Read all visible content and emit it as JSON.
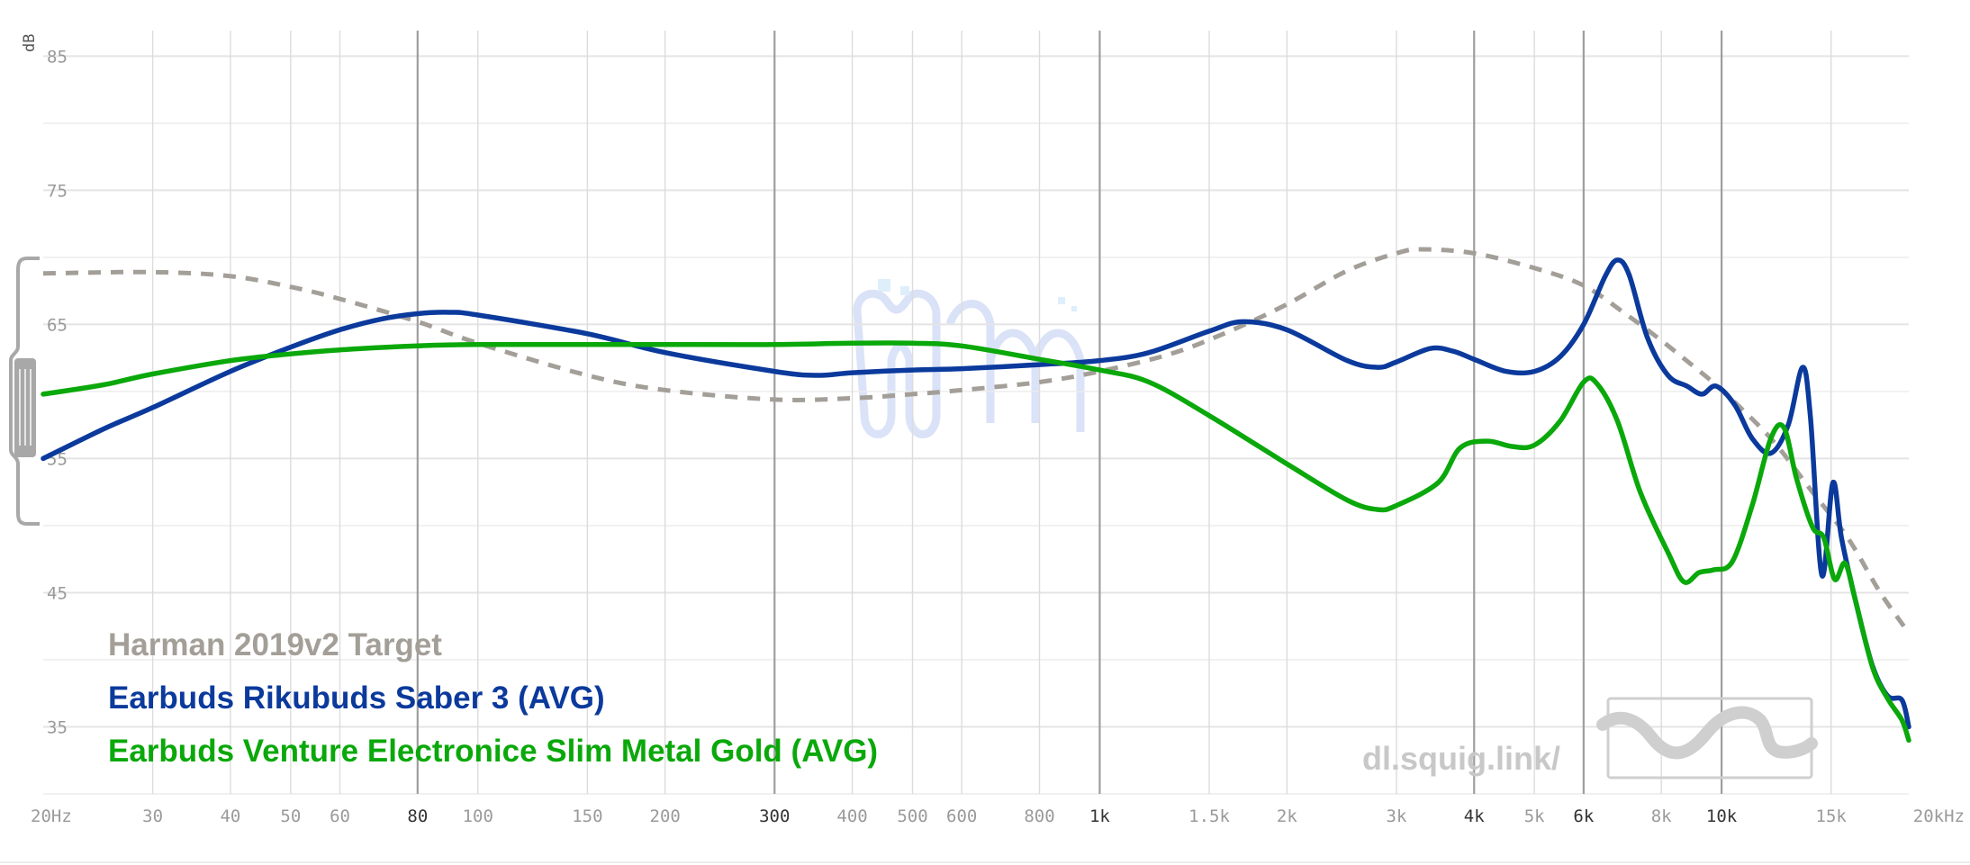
{
  "chart_data": {
    "type": "line",
    "ylabel": "dB",
    "xscale": "log",
    "xlim": [
      20,
      20000
    ],
    "ylim": [
      30,
      86.5
    ],
    "y_ticks": [
      35,
      45,
      55,
      65,
      75,
      85
    ],
    "x_ticks": [
      {
        "value": 20,
        "label": "20Hz",
        "major": false
      },
      {
        "value": 30,
        "label": "30",
        "major": false
      },
      {
        "value": 40,
        "label": "40",
        "major": false
      },
      {
        "value": 50,
        "label": "50",
        "major": false
      },
      {
        "value": 60,
        "label": "60",
        "major": false
      },
      {
        "value": 80,
        "label": "80",
        "major": true
      },
      {
        "value": 100,
        "label": "100",
        "major": false
      },
      {
        "value": 150,
        "label": "150",
        "major": false
      },
      {
        "value": 200,
        "label": "200",
        "major": false
      },
      {
        "value": 300,
        "label": "300",
        "major": true
      },
      {
        "value": 400,
        "label": "400",
        "major": false
      },
      {
        "value": 500,
        "label": "500",
        "major": false
      },
      {
        "value": 600,
        "label": "600",
        "major": false
      },
      {
        "value": 800,
        "label": "800",
        "major": false
      },
      {
        "value": 1000,
        "label": "1k",
        "major": true
      },
      {
        "value": 1500,
        "label": "1.5k",
        "major": false
      },
      {
        "value": 2000,
        "label": "2k",
        "major": false
      },
      {
        "value": 3000,
        "label": "3k",
        "major": false
      },
      {
        "value": 4000,
        "label": "4k",
        "major": true
      },
      {
        "value": 5000,
        "label": "5k",
        "major": false
      },
      {
        "value": 6000,
        "label": "6k",
        "major": true
      },
      {
        "value": 8000,
        "label": "8k",
        "major": false
      },
      {
        "value": 10000,
        "label": "10k",
        "major": true
      },
      {
        "value": 15000,
        "label": "15k",
        "major": false
      },
      {
        "value": 20000,
        "label": "20kHz",
        "major": false
      }
    ],
    "grid": true,
    "legend_position": "bottom-left",
    "series": [
      {
        "name": "Harman 2019v2 Target",
        "color": "#a39f98",
        "dashed": true,
        "points": [
          [
            20,
            68.8
          ],
          [
            30,
            68.9
          ],
          [
            40,
            68.6
          ],
          [
            50,
            67.8
          ],
          [
            60,
            66.9
          ],
          [
            80,
            65.2
          ],
          [
            100,
            63.6
          ],
          [
            150,
            61.2
          ],
          [
            200,
            60.1
          ],
          [
            300,
            59.4
          ],
          [
            400,
            59.5
          ],
          [
            500,
            59.8
          ],
          [
            600,
            60.1
          ],
          [
            800,
            60.7
          ],
          [
            1000,
            61.5
          ],
          [
            1300,
            62.8
          ],
          [
            1600,
            64.4
          ],
          [
            2000,
            66.5
          ],
          [
            2500,
            69.0
          ],
          [
            3000,
            70.3
          ],
          [
            3300,
            70.6
          ],
          [
            4000,
            70.3
          ],
          [
            5000,
            69.2
          ],
          [
            6000,
            67.9
          ],
          [
            7000,
            65.8
          ],
          [
            8000,
            63.8
          ],
          [
            9000,
            61.9
          ],
          [
            10000,
            60.1
          ],
          [
            12000,
            56.5
          ],
          [
            14000,
            52.5
          ],
          [
            16000,
            49.0
          ],
          [
            18000,
            45.0
          ],
          [
            20000,
            42.0
          ]
        ]
      },
      {
        "name": "Earbuds Rikubuds Saber 3 (AVG)",
        "color": "#0b3a9c",
        "dashed": false,
        "points": [
          [
            20,
            55.0
          ],
          [
            25,
            57.2
          ],
          [
            30,
            58.8
          ],
          [
            40,
            61.5
          ],
          [
            50,
            63.3
          ],
          [
            60,
            64.6
          ],
          [
            70,
            65.4
          ],
          [
            80,
            65.8
          ],
          [
            90,
            65.9
          ],
          [
            100,
            65.7
          ],
          [
            150,
            64.3
          ],
          [
            200,
            62.9
          ],
          [
            300,
            61.5
          ],
          [
            350,
            61.2
          ],
          [
            400,
            61.4
          ],
          [
            500,
            61.6
          ],
          [
            600,
            61.7
          ],
          [
            800,
            62.0
          ],
          [
            1000,
            62.3
          ],
          [
            1200,
            62.9
          ],
          [
            1500,
            64.5
          ],
          [
            1700,
            65.2
          ],
          [
            2000,
            64.6
          ],
          [
            2500,
            62.3
          ],
          [
            2800,
            61.8
          ],
          [
            3000,
            62.2
          ],
          [
            3400,
            63.2
          ],
          [
            3700,
            63.0
          ],
          [
            4000,
            62.4
          ],
          [
            4500,
            61.5
          ],
          [
            5000,
            61.5
          ],
          [
            5500,
            62.6
          ],
          [
            6000,
            65.0
          ],
          [
            6500,
            68.6
          ],
          [
            6800,
            69.8
          ],
          [
            7100,
            68.7
          ],
          [
            7600,
            64.0
          ],
          [
            8200,
            61.2
          ],
          [
            8800,
            60.4
          ],
          [
            9300,
            59.8
          ],
          [
            9800,
            60.4
          ],
          [
            10500,
            59.0
          ],
          [
            11200,
            56.5
          ],
          [
            12000,
            55.4
          ],
          [
            12800,
            57.5
          ],
          [
            13500,
            61.8
          ],
          [
            13900,
            58.0
          ],
          [
            14500,
            46.3
          ],
          [
            15100,
            53.2
          ],
          [
            15600,
            49.0
          ],
          [
            16500,
            44.0
          ],
          [
            17500,
            39.5
          ],
          [
            18500,
            37.3
          ],
          [
            19500,
            37.0
          ],
          [
            20000,
            35.0
          ]
        ]
      },
      {
        "name": "Earbuds Venture Electronice Slim Metal Gold (AVG)",
        "color": "#0aa80a",
        "dashed": false,
        "points": [
          [
            20,
            59.8
          ],
          [
            25,
            60.5
          ],
          [
            30,
            61.3
          ],
          [
            40,
            62.3
          ],
          [
            50,
            62.8
          ],
          [
            60,
            63.1
          ],
          [
            80,
            63.4
          ],
          [
            100,
            63.5
          ],
          [
            200,
            63.5
          ],
          [
            300,
            63.5
          ],
          [
            400,
            63.6
          ],
          [
            500,
            63.6
          ],
          [
            600,
            63.4
          ],
          [
            800,
            62.4
          ],
          [
            1000,
            61.6
          ],
          [
            1200,
            60.7
          ],
          [
            1500,
            58.2
          ],
          [
            2000,
            54.6
          ],
          [
            2500,
            51.9
          ],
          [
            2800,
            51.2
          ],
          [
            3000,
            51.5
          ],
          [
            3500,
            53.2
          ],
          [
            3800,
            55.8
          ],
          [
            4200,
            56.3
          ],
          [
            4600,
            55.9
          ],
          [
            5000,
            56.0
          ],
          [
            5500,
            57.8
          ],
          [
            6000,
            60.7
          ],
          [
            6300,
            60.6
          ],
          [
            6800,
            57.8
          ],
          [
            7400,
            52.5
          ],
          [
            8200,
            48.0
          ],
          [
            8700,
            45.8
          ],
          [
            9200,
            46.5
          ],
          [
            9700,
            46.7
          ],
          [
            10400,
            47.3
          ],
          [
            11200,
            51.5
          ],
          [
            12000,
            56.5
          ],
          [
            12600,
            57.3
          ],
          [
            13200,
            53.5
          ],
          [
            14000,
            49.9
          ],
          [
            14600,
            49.1
          ],
          [
            15200,
            46.0
          ],
          [
            15800,
            47.2
          ],
          [
            16400,
            44.5
          ],
          [
            17500,
            39.4
          ],
          [
            18500,
            37.1
          ],
          [
            19500,
            35.5
          ],
          [
            20000,
            34.0
          ]
        ]
      }
    ],
    "watermark_text": "dl.squig.link/"
  }
}
